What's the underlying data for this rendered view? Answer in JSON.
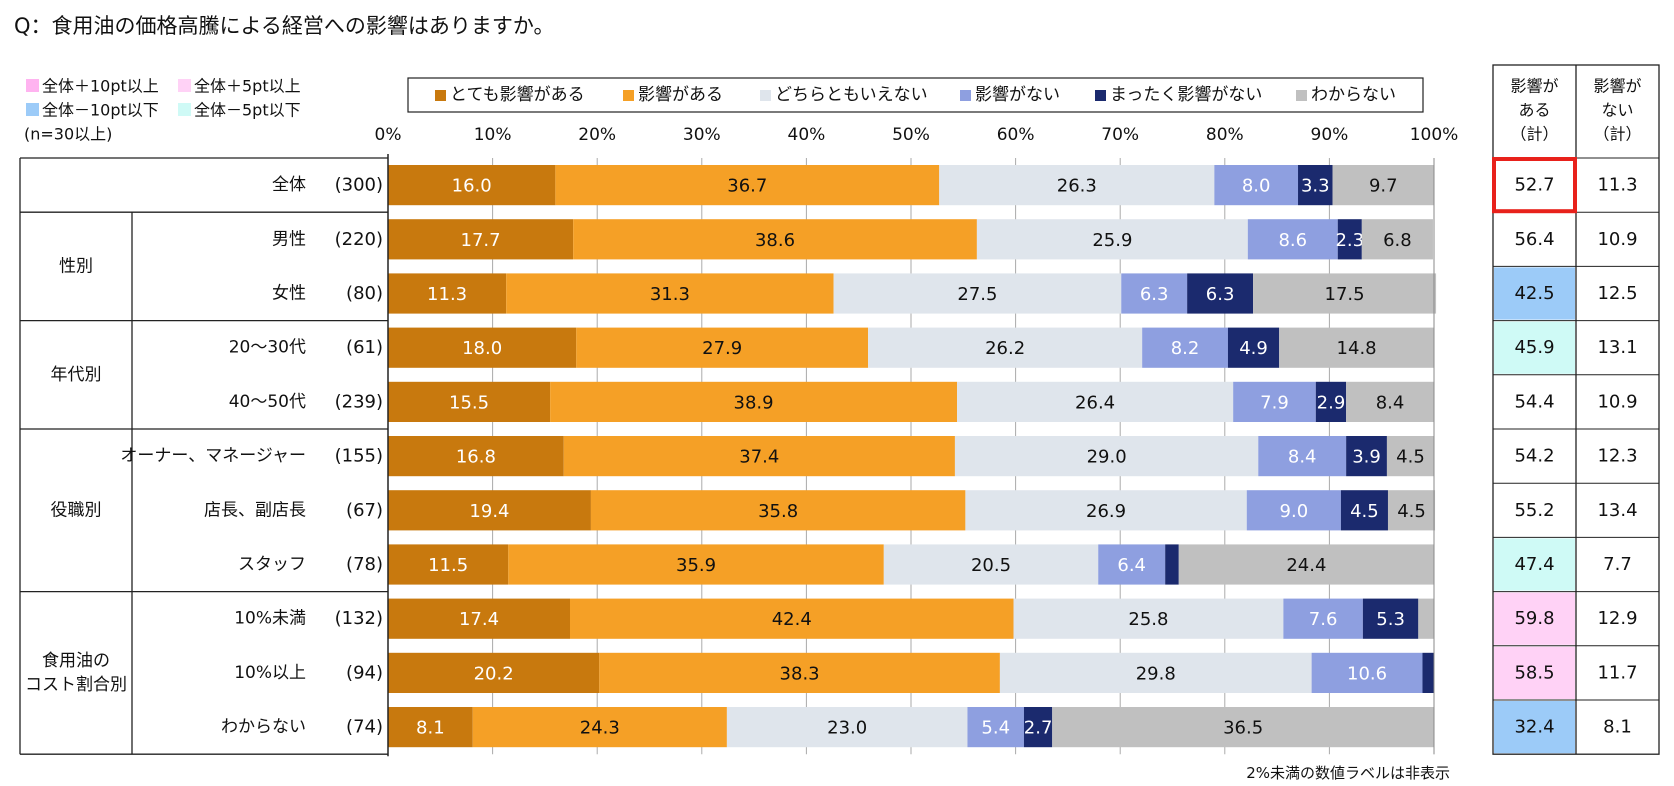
{
  "chart_data": {
    "type": "bar",
    "orientation": "horizontal",
    "stacked": true,
    "percent_scale": true,
    "title": "Q：食用油の価格高騰による経営への影響はありますか。",
    "xlim": [
      0,
      100
    ],
    "x_ticks": [
      "0%",
      "10%",
      "20%",
      "30%",
      "40%",
      "50%",
      "60%",
      "70%",
      "80%",
      "90%",
      "100%"
    ],
    "grid": true,
    "legend_position": "top",
    "series_names": [
      "とても影響がある",
      "影響がある",
      "どちらともいえない",
      "影響がない",
      "まったく影響がない",
      "わからない"
    ],
    "series_colors": [
      "#C8790E",
      "#F5A026",
      "#DFE5EC",
      "#8E9FE0",
      "#1B2A6E",
      "#C0C0C0"
    ],
    "label_colors": [
      "#ffffff",
      "#111111",
      "#111111",
      "#ffffff",
      "#ffffff",
      "#111111"
    ],
    "groups": [
      {
        "name": "",
        "row_count": 1
      },
      {
        "name": "性別",
        "row_count": 2
      },
      {
        "name": "年代別",
        "row_count": 2
      },
      {
        "name": "役職別",
        "row_count": 3
      },
      {
        "name": "食用油の\nコスト割合別",
        "row_count": 3
      }
    ],
    "rows": [
      {
        "label": "全体",
        "n": "(300)",
        "values": [
          16.0,
          36.7,
          26.3,
          8.0,
          3.3,
          9.7
        ],
        "labels": [
          "16.0",
          "36.7",
          "26.3",
          "8.0",
          "3.3",
          "9.7"
        ],
        "total_yes": "52.7",
        "total_no": "11.3",
        "highlight": "none"
      },
      {
        "label": "男性",
        "n": "(220)",
        "values": [
          17.7,
          38.6,
          25.9,
          8.6,
          2.3,
          6.8
        ],
        "labels": [
          "17.7",
          "38.6",
          "25.9",
          "8.6",
          "2.3",
          "6.8"
        ],
        "total_yes": "56.4",
        "total_no": "10.9",
        "highlight": "none"
      },
      {
        "label": "女性",
        "n": "(80)",
        "values": [
          11.3,
          31.3,
          27.5,
          6.3,
          6.3,
          17.5
        ],
        "labels": [
          "11.3",
          "31.3",
          "27.5",
          "6.3",
          "6.3",
          "17.5"
        ],
        "total_yes": "42.5",
        "total_no": "12.5",
        "highlight": "minus10"
      },
      {
        "label": "20～30代",
        "n": "(61)",
        "values": [
          18.0,
          27.9,
          26.2,
          8.2,
          4.9,
          14.8
        ],
        "labels": [
          "18.0",
          "27.9",
          "26.2",
          "8.2",
          "4.9",
          "14.8"
        ],
        "total_yes": "45.9",
        "total_no": "13.1",
        "highlight": "minus5"
      },
      {
        "label": "40～50代",
        "n": "(239)",
        "values": [
          15.5,
          38.9,
          26.4,
          7.9,
          2.9,
          8.4
        ],
        "labels": [
          "15.5",
          "38.9",
          "26.4",
          "7.9",
          "2.9",
          "8.4"
        ],
        "total_yes": "54.4",
        "total_no": "10.9",
        "highlight": "none"
      },
      {
        "label": "オーナー、マネージャー",
        "n": "(155)",
        "values": [
          16.8,
          37.4,
          29.0,
          8.4,
          3.9,
          4.5
        ],
        "labels": [
          "16.8",
          "37.4",
          "29.0",
          "8.4",
          "3.9",
          "4.5"
        ],
        "total_yes": "54.2",
        "total_no": "12.3",
        "highlight": "none"
      },
      {
        "label": "店長、副店長",
        "n": "(67)",
        "values": [
          19.4,
          35.8,
          26.9,
          9.0,
          4.5,
          4.5
        ],
        "labels": [
          "19.4",
          "35.8",
          "26.9",
          "9.0",
          "4.5",
          "4.5"
        ],
        "total_yes": "55.2",
        "total_no": "13.4",
        "highlight": "none"
      },
      {
        "label": "スタッフ",
        "n": "(78)",
        "values": [
          11.5,
          35.9,
          20.5,
          6.4,
          1.3,
          24.4
        ],
        "labels": [
          "11.5",
          "35.9",
          "20.5",
          "6.4",
          "",
          "24.4"
        ],
        "total_yes": "47.4",
        "total_no": "7.7",
        "highlight": "minus5"
      },
      {
        "label": "10%未満",
        "n": "(132)",
        "values": [
          17.4,
          42.4,
          25.8,
          7.6,
          5.3,
          1.5
        ],
        "labels": [
          "17.4",
          "42.4",
          "25.8",
          "7.6",
          "5.3",
          ""
        ],
        "total_yes": "59.8",
        "total_no": "12.9",
        "highlight": "plus5"
      },
      {
        "label": "10%以上",
        "n": "(94)",
        "values": [
          20.2,
          38.3,
          29.8,
          10.6,
          1.1,
          0.0
        ],
        "labels": [
          "20.2",
          "38.3",
          "29.8",
          "10.6",
          "",
          ""
        ],
        "total_yes": "58.5",
        "total_no": "11.7",
        "highlight": "plus5"
      },
      {
        "label": "わからない",
        "n": "(74)",
        "values": [
          8.1,
          24.3,
          23.0,
          5.4,
          2.7,
          36.5
        ],
        "labels": [
          "8.1",
          "24.3",
          "23.0",
          "5.4",
          "2.7",
          "36.5"
        ],
        "total_yes": "32.4",
        "total_no": "8.1",
        "highlight": "minus10"
      }
    ],
    "total_headers": {
      "yes": [
        "影響が",
        "ある",
        "（計）"
      ],
      "no": [
        "影響が",
        "ない",
        "（計）"
      ]
    },
    "highlight_legend": [
      {
        "key": "plus10",
        "text": "全体＋10pt以上",
        "color": "#FFB3F0"
      },
      {
        "key": "plus5",
        "text": "全体＋5pt以上",
        "color": "#FFD2F6"
      },
      {
        "key": "minus10",
        "text": "全体－10pt以下",
        "color": "#9CCBF8"
      },
      {
        "key": "minus5",
        "text": "全体－5pt以下",
        "color": "#CFFAF6"
      }
    ],
    "highlight_note": "(n=30以上)",
    "emphasis_cell": "52.7",
    "emphasis_color": "#E8211B",
    "footnote": "2%未満の数値ラベルは非表示"
  }
}
